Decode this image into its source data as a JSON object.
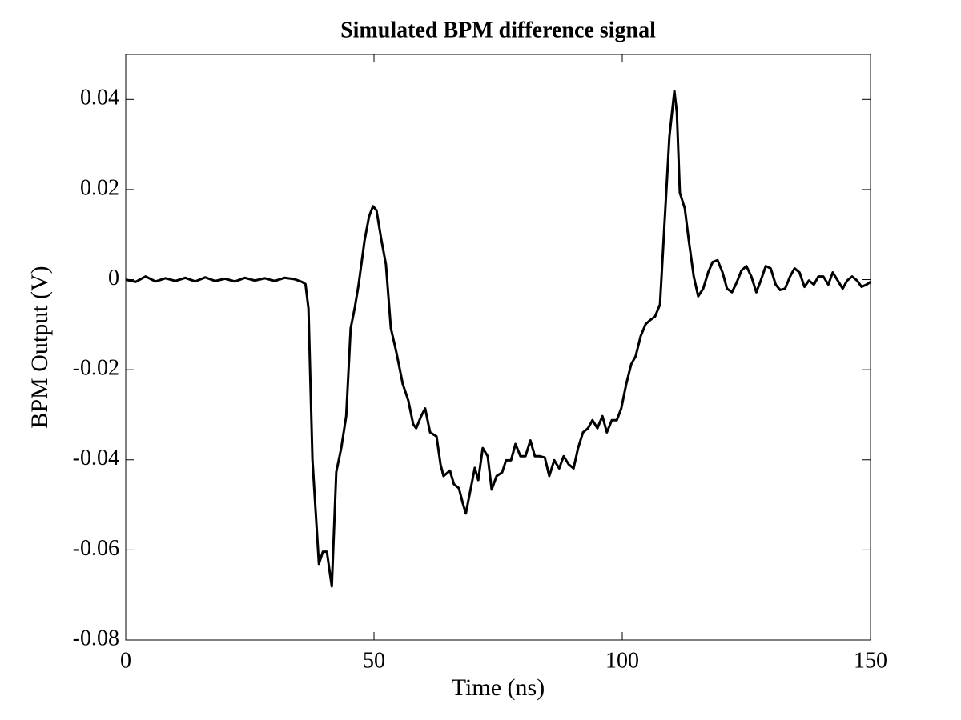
{
  "chart_data": {
    "type": "line",
    "title": "Simulated BPM difference signal",
    "xlabel": "Time (ns)",
    "ylabel": "BPM Output (V)",
    "xlim": [
      0,
      150
    ],
    "xticks": [
      0,
      50,
      100,
      150
    ],
    "ylim": [
      -0.08,
      0.05
    ],
    "yticks": [
      -0.08,
      -0.06,
      -0.04,
      -0.02,
      0,
      0.02,
      0.04
    ],
    "grid": false,
    "series": [
      {
        "color": "#000000",
        "x": [
          0,
          2,
          4,
          6,
          8,
          10,
          12,
          14,
          16,
          18,
          20,
          22,
          24,
          26,
          28,
          30,
          32,
          34,
          35.5,
          36.2,
          36.8,
          37.6,
          38.9,
          39.7,
          40.5,
          41.5,
          42.4,
          43.4,
          44.4,
          45.3,
          46.1,
          46.9,
          48.1,
          49,
          49.8,
          50.5,
          51.5,
          52.4,
          53.4,
          54.5,
          55.8,
          56.9,
          57.9,
          58.5,
          59.5,
          60.3,
          61.3,
          62.6,
          63.4,
          64,
          65.3,
          66.1,
          67.1,
          67.9,
          68.5,
          69.5,
          70.3,
          71,
          71.9,
          72.9,
          73.7,
          74.7,
          75.8,
          76.6,
          77.6,
          78.5,
          79.5,
          80.5,
          81.5,
          82.4,
          83.4,
          84.4,
          85.3,
          86.3,
          87.3,
          88.2,
          89.2,
          90.2,
          91.1,
          92.1,
          93.1,
          94,
          95,
          96,
          96.9,
          97.9,
          98.9,
          99.8,
          100.8,
          101.8,
          102.7,
          103.7,
          104.7,
          105.6,
          106.6,
          107.6,
          108.5,
          109.5,
          110.5,
          111,
          111.6,
          112.6,
          113.4,
          114.4,
          115.3,
          116.3,
          117.3,
          118.2,
          119.2,
          120.2,
          121.1,
          122.1,
          123.1,
          124,
          125,
          126,
          127,
          127.9,
          128.9,
          129.9,
          130.9,
          131.8,
          132.8,
          133.8,
          134.7,
          135.7,
          136.7,
          137.6,
          138.6,
          139.5,
          140.5,
          141.5,
          142.4,
          143.4,
          144.4,
          145.3,
          146.3,
          147.3,
          148.2,
          149.2,
          150
        ],
        "values": [
          0,
          -0.0005,
          0.0007,
          -0.0004,
          0.0003,
          -0.0003,
          0.0004,
          -0.0004,
          0.0005,
          -0.0003,
          0.0002,
          -0.0004,
          0.0004,
          -0.0002,
          0.0003,
          -0.0003,
          0.0004,
          0.0001,
          -0.0005,
          -0.001,
          -0.0064,
          -0.0399,
          -0.0631,
          -0.0604,
          -0.0604,
          -0.0681,
          -0.0427,
          -0.0374,
          -0.0303,
          -0.0108,
          -0.0064,
          -0.0011,
          0.0087,
          0.014,
          0.0163,
          0.0154,
          0.0087,
          0.0034,
          -0.0108,
          -0.0161,
          -0.0232,
          -0.0268,
          -0.0321,
          -0.033,
          -0.0303,
          -0.0286,
          -0.0339,
          -0.0348,
          -0.041,
          -0.0436,
          -0.0424,
          -0.0454,
          -0.0463,
          -0.0497,
          -0.0519,
          -0.0463,
          -0.0418,
          -0.0445,
          -0.0374,
          -0.0392,
          -0.0466,
          -0.0436,
          -0.0428,
          -0.0401,
          -0.0401,
          -0.0365,
          -0.0392,
          -0.0392,
          -0.0357,
          -0.0392,
          -0.0392,
          -0.0395,
          -0.0436,
          -0.0401,
          -0.0419,
          -0.0392,
          -0.041,
          -0.0419,
          -0.0374,
          -0.0339,
          -0.033,
          -0.0312,
          -0.033,
          -0.0303,
          -0.0339,
          -0.0312,
          -0.0312,
          -0.0286,
          -0.0232,
          -0.0188,
          -0.017,
          -0.0126,
          -0.0099,
          -0.009,
          -0.0082,
          -0.0055,
          0.0122,
          0.0318,
          0.0419,
          0.0371,
          0.0193,
          0.0158,
          0.0087,
          0.0007,
          -0.0037,
          -0.002,
          0.0016,
          0.0039,
          0.0043,
          0.0016,
          -0.002,
          -0.0028,
          -0.0005,
          0.002,
          0.003,
          0.0007,
          -0.0028,
          -0.0002,
          0.003,
          0.0025,
          -0.0011,
          -0.0023,
          -0.002,
          0.0007,
          0.0025,
          0.0016,
          -0.0016,
          -0.0002,
          -0.0011,
          0.0007,
          0.0007,
          -0.0011,
          0.0016,
          -0.0002,
          -0.002,
          -0.0002,
          0.0007,
          -0.0002,
          -0.0016,
          -0.0011,
          -0.0005
        ]
      }
    ]
  }
}
